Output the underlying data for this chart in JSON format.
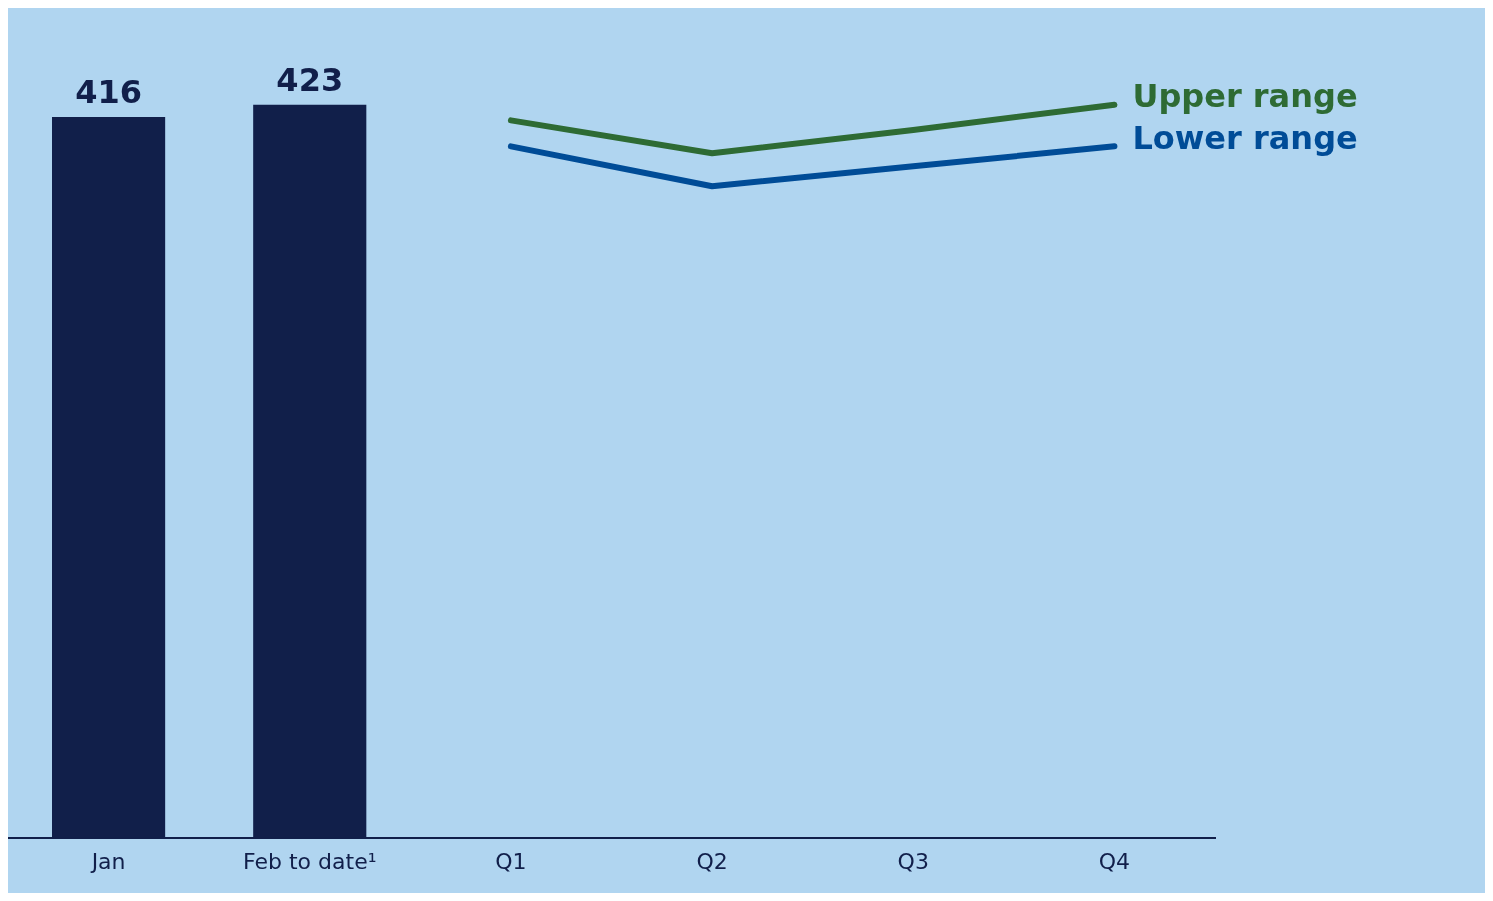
{
  "chart_data": {
    "type": "bar",
    "categories": [
      "Jan",
      "Feb to date¹",
      "Q1",
      "Q2",
      "Q3",
      "Q4"
    ],
    "series": [
      {
        "color": "#111f4a",
        "values": [
          416,
          423,
          null,
          null,
          null,
          null
        ],
        "value_labels": [
          "416",
          "423",
          null,
          null,
          null,
          null
        ]
      },
      {
        "type": "line",
        "name": "Upper range",
        "color": "#2e6b34",
        "values": [
          null,
          null,
          414,
          395,
          408.5,
          423
        ]
      },
      {
        "type": "line",
        "name": "Lower range",
        "color": "#004c97",
        "values": [
          null,
          null,
          399,
          376,
          387.5,
          399
        ]
      }
    ],
    "grid": false,
    "legend": false,
    "tick_labels": "x",
    "line_style": "solid"
  }
}
